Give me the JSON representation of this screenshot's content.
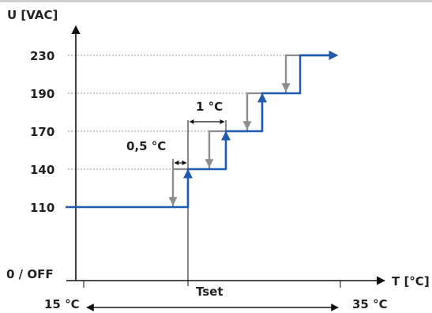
{
  "y_axis_label": "U [VAC]",
  "x_axis_label": "T [°C]",
  "y_levels": [
    {
      "label": "230",
      "value": 230
    },
    {
      "label": "190",
      "value": 190
    },
    {
      "label": "170",
      "value": 170
    },
    {
      "label": "140",
      "value": 140
    },
    {
      "label": "110",
      "value": 110
    }
  ],
  "y_zero_label": "0 / OFF",
  "set_point_label": "Tset",
  "range_min_label": "15 °C",
  "range_max_label": "35 °C",
  "step_annotation": "1 °C",
  "hysteresis_annotation": "0,5 °C",
  "colors": {
    "rising_curve": "#1f5bb0",
    "falling_curve": "#8c8c8c",
    "axis": "#111111",
    "gridline": "#9a9a9a"
  }
}
